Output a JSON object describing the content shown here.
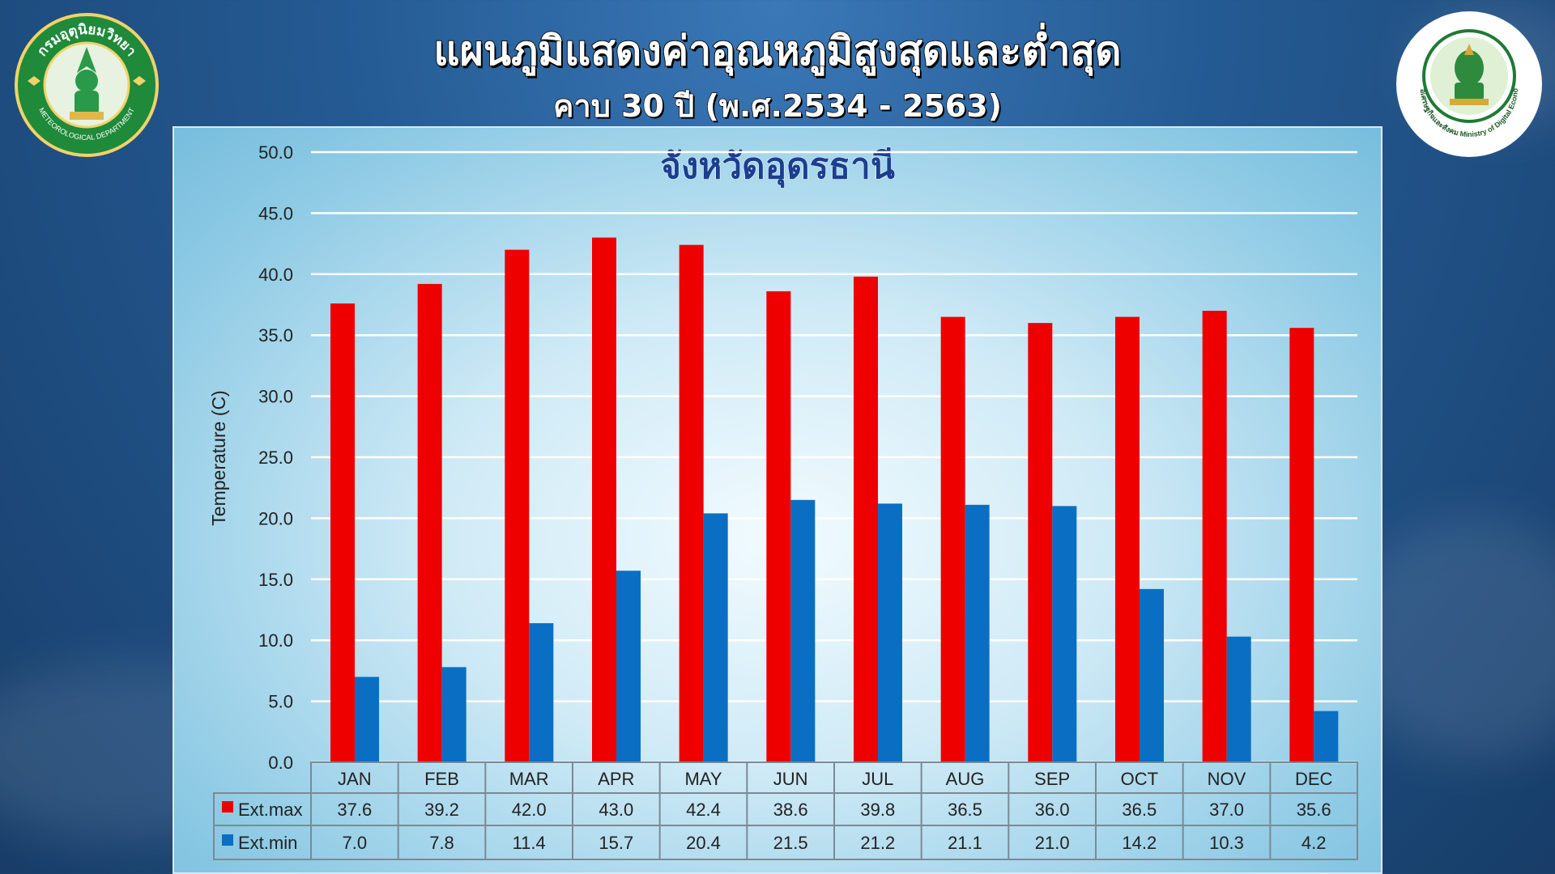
{
  "header": {
    "title": "แผนภูมิแสดงค่าอุณหภูมิสูงสุดและต่ำสุด",
    "subtitle": "คาบ 30 ปี (พ.ศ.2534 - 2563)"
  },
  "logos": {
    "left": {
      "text_top": "กรมอุตุนิยมวิทยา",
      "text_bottom": "METEOROLOGICAL DEPARTMENT"
    },
    "right": {
      "text": "กระทรวงดิจิทัลเพื่อเศรษฐกิจและสังคม Ministry of Digital Economy and Society"
    }
  },
  "chart_data": {
    "type": "bar",
    "title": "จังหวัดอุดรธานี",
    "ylabel": "Temperature (C)",
    "xlabel": "",
    "ylim": [
      0,
      50
    ],
    "yticks": [
      "0.0",
      "5.0",
      "10.0",
      "15.0",
      "20.0",
      "25.0",
      "30.0",
      "35.0",
      "40.0",
      "45.0",
      "50.0"
    ],
    "grid": true,
    "categories": [
      "JAN",
      "FEB",
      "MAR",
      "APR",
      "MAY",
      "JUN",
      "JUL",
      "AUG",
      "SEP",
      "OCT",
      "NOV",
      "DEC"
    ],
    "series": [
      {
        "name": "Ext.max",
        "color": "#ee0000",
        "values": [
          37.6,
          39.2,
          42.0,
          43.0,
          42.4,
          38.6,
          39.8,
          36.5,
          36.0,
          36.5,
          37.0,
          35.6
        ]
      },
      {
        "name": "Ext.min",
        "color": "#0a6fc2",
        "values": [
          7.0,
          7.8,
          11.4,
          15.7,
          20.4,
          21.5,
          21.2,
          21.1,
          21.0,
          14.2,
          10.3,
          4.2
        ]
      }
    ],
    "data_table": true
  }
}
